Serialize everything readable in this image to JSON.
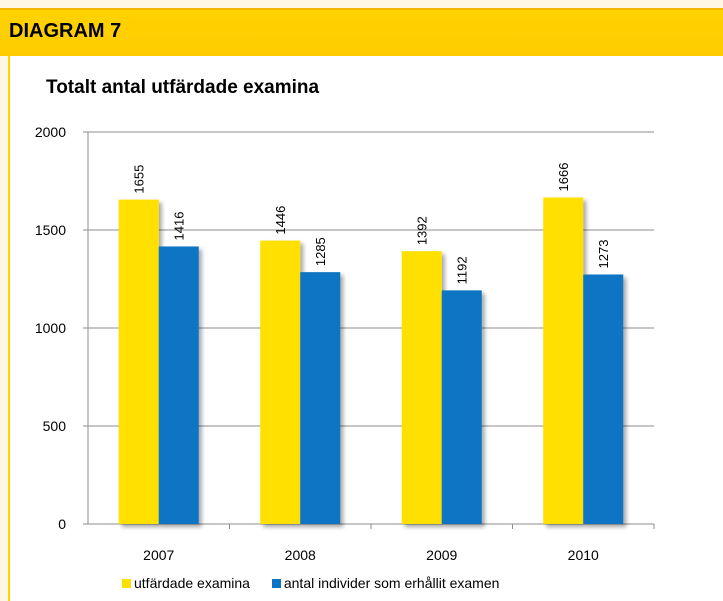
{
  "header": {
    "title": "DIAGRAM 7"
  },
  "colors": {
    "header_band": "#ffd200",
    "series1": "#ffe000",
    "series2": "#0a75c4",
    "gridline": "#8c8c8c"
  },
  "chart_data": {
    "type": "bar",
    "title": "Totalt antal utfärdade examina",
    "categories": [
      "2007",
      "2008",
      "2009",
      "2010"
    ],
    "series": [
      {
        "name": "utfärdade examina",
        "values": [
          1655,
          1446,
          1392,
          1666
        ],
        "color": "#ffe000"
      },
      {
        "name": "antal individer som erhållit  examen",
        "values": [
          1416,
          1285,
          1192,
          1273
        ],
        "color": "#0a75c4"
      }
    ],
    "yticks": [
      "0",
      "500",
      "1000",
      "1500",
      "2000"
    ],
    "ylim": [
      0,
      2000
    ],
    "grid": true,
    "legend": "bottom"
  }
}
